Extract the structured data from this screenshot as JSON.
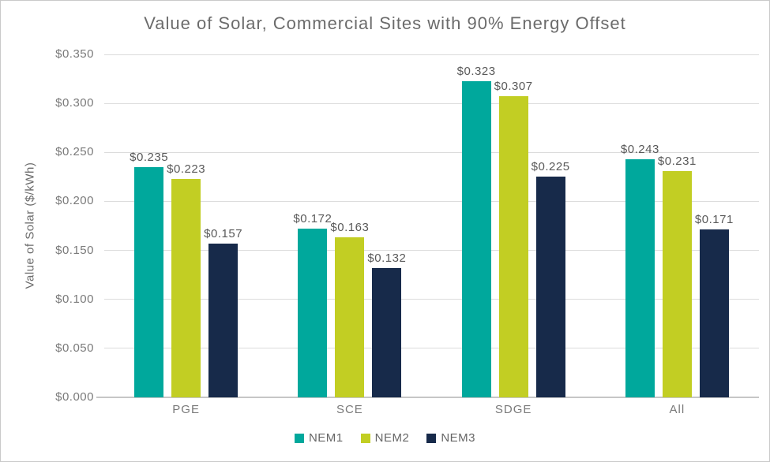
{
  "window": {
    "background": "#ffffff",
    "border_color": "#c9c9c9"
  },
  "chart_data": {
    "type": "bar",
    "title": "Value of Solar, Commercial Sites with 90% Energy Offset",
    "xlabel": "",
    "ylabel": "Value of Solar ($/kWh)",
    "categories": [
      "PGE",
      "SCE",
      "SDGE",
      "All"
    ],
    "series": [
      {
        "name": "NEM1",
        "color": "#00A89C",
        "values": [
          0.235,
          0.172,
          0.323,
          0.243
        ],
        "labels": [
          "$0.235",
          "$0.172",
          "$0.323",
          "$0.243"
        ]
      },
      {
        "name": "NEM2",
        "color": "#C2CE23",
        "values": [
          0.223,
          0.163,
          0.307,
          0.231
        ],
        "labels": [
          "$0.223",
          "$0.163",
          "$0.307",
          "$0.231"
        ]
      },
      {
        "name": "NEM3",
        "color": "#172A4A",
        "values": [
          0.157,
          0.132,
          0.225,
          0.171
        ],
        "labels": [
          "$0.157",
          "$0.132",
          "$0.225",
          "$0.171"
        ]
      }
    ],
    "ylim": [
      0,
      0.35
    ],
    "ytick_step": 0.05,
    "ytick_labels": [
      "$0.000",
      "$0.050",
      "$0.100",
      "$0.150",
      "$0.200",
      "$0.250",
      "$0.300",
      "$0.350"
    ],
    "grid": "horizontal",
    "legend_position": "bottom",
    "colors": {
      "grid": "#DCDCDC",
      "axis": "#C6C6C6",
      "title_text": "#6B6B6B",
      "tick_text": "#7A7A7A",
      "label_text": "#595959"
    }
  }
}
